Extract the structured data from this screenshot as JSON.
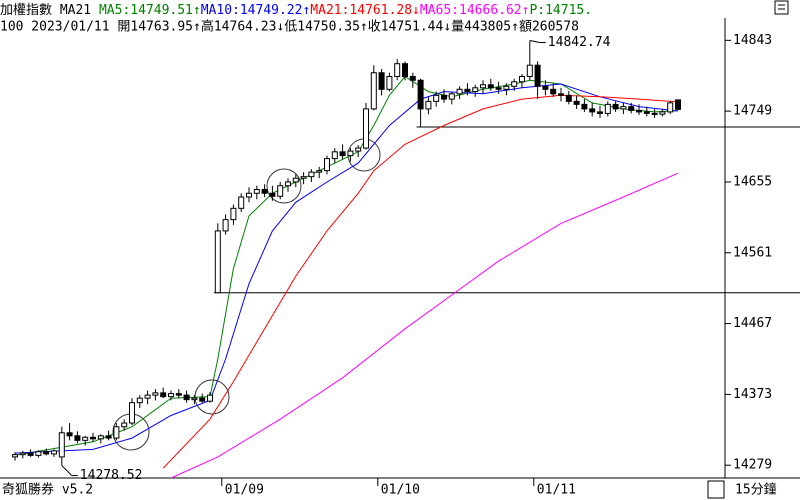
{
  "header": {
    "line1": [
      {
        "text": "加權指數 MA21 ",
        "color": "#000000"
      },
      {
        "text": "MA5:14749.51↑",
        "color": "#008000"
      },
      {
        "text": "MA10:14749.22↑",
        "color": "#0000ff"
      },
      {
        "text": "MA21:14761.28↓",
        "color": "#ff0000"
      },
      {
        "text": "MA65:14666.62↑",
        "color": "#ff00ff"
      },
      {
        "text": "P:14715.",
        "color": "#008000"
      }
    ],
    "line2": "100 2023/01/11 開14763.95↑高14764.23↓低14750.35↑收14751.44↓量443805↑額260578"
  },
  "footer": {
    "brand": "奇狐勝券 v5.2",
    "period": "15分鐘"
  },
  "chart_data": {
    "type": "candlestick",
    "open": [
      14290,
      14293,
      14295,
      14292,
      14297,
      14294,
      14290,
      14322,
      14318,
      14312,
      14316,
      14314,
      14318,
      14315,
      14330,
      14335,
      14362,
      14368,
      14372,
      14375,
      14370,
      14374,
      14372,
      14366,
      14368,
      14364,
      14508,
      14590,
      14605,
      14620,
      14635,
      14640,
      14645,
      14640,
      14636,
      14650,
      14655,
      14660,
      14662,
      14668,
      14670,
      14686,
      14695,
      14690,
      14696,
      14700,
      14752,
      14800,
      14778,
      14795,
      14812,
      14795,
      14790,
      14752,
      14762,
      14770,
      14765,
      14772,
      14778,
      14775,
      14780,
      14784,
      14780,
      14778,
      14782,
      14788,
      14795,
      14810,
      14782,
      14778,
      14772,
      14770,
      14762,
      14758,
      14752,
      14748,
      14746,
      14758,
      14752,
      14755,
      14750,
      14748,
      14746,
      14745,
      14748,
      14763.95
    ],
    "high": [
      14296,
      14298,
      14300,
      14299,
      14301,
      14300,
      14330,
      14335,
      14324,
      14318,
      14322,
      14320,
      14325,
      14335,
      14340,
      14368,
      14372,
      14378,
      14380,
      14382,
      14378,
      14380,
      14378,
      14372,
      14374,
      14376,
      14600,
      14612,
      14625,
      14640,
      14648,
      14650,
      14652,
      14650,
      14655,
      14660,
      14665,
      14668,
      14672,
      14675,
      14690,
      14700,
      14705,
      14700,
      14704,
      14760,
      14810,
      14805,
      14800,
      14818,
      14815,
      14800,
      14792,
      14768,
      14775,
      14778,
      14775,
      14782,
      14786,
      14784,
      14790,
      14792,
      14788,
      14786,
      14792,
      14798,
      14842.74,
      14815,
      14790,
      14786,
      14780,
      14776,
      14770,
      14765,
      14760,
      14756,
      14762,
      14762,
      14760,
      14760,
      14758,
      14755,
      14752,
      14752,
      14762,
      14764.23
    ],
    "low": [
      14285,
      14288,
      14290,
      14289,
      14292,
      14290,
      14278.52,
      14312,
      14308,
      14305,
      14310,
      14308,
      14312,
      14312,
      14325,
      14332,
      14355,
      14360,
      14365,
      14368,
      14365,
      14368,
      14362,
      14360,
      14362,
      14362,
      14508,
      14585,
      14598,
      14615,
      14628,
      14632,
      14635,
      14630,
      14632,
      14642,
      14648,
      14652,
      14655,
      14660,
      14665,
      14680,
      14685,
      14682,
      14688,
      14698,
      14750,
      14770,
      14775,
      14790,
      14790,
      14780,
      14728,
      14745,
      14755,
      14760,
      14758,
      14765,
      14770,
      14768,
      14772,
      14776,
      14772,
      14770,
      14776,
      14780,
      14790,
      14765,
      14770,
      14768,
      14762,
      14758,
      14752,
      14748,
      14742,
      14740,
      14742,
      14748,
      14745,
      14746,
      14744,
      14742,
      14740,
      14742,
      14745,
      14750.35
    ],
    "close": [
      14293,
      14295,
      14292,
      14297,
      14294,
      14298,
      14322,
      14318,
      14312,
      14316,
      14314,
      14318,
      14315,
      14330,
      14335,
      14362,
      14368,
      14372,
      14375,
      14370,
      14374,
      14372,
      14366,
      14368,
      14364,
      14372,
      14590,
      14605,
      14620,
      14635,
      14640,
      14645,
      14640,
      14636,
      14650,
      14655,
      14660,
      14662,
      14668,
      14670,
      14686,
      14695,
      14690,
      14696,
      14700,
      14752,
      14800,
      14778,
      14795,
      14812,
      14795,
      14790,
      14752,
      14762,
      14770,
      14765,
      14772,
      14778,
      14775,
      14780,
      14784,
      14780,
      14778,
      14782,
      14788,
      14795,
      14810,
      14782,
      14778,
      14772,
      14770,
      14762,
      14758,
      14752,
      14748,
      14746,
      14758,
      14752,
      14755,
      14750,
      14748,
      14746,
      14745,
      14748,
      14760,
      14751.44
    ],
    "lines": [
      {
        "name": "MA5",
        "color": "#008000",
        "x": [
          0,
          10,
          15,
          20,
          25,
          26,
          28,
          30,
          33,
          36,
          40,
          44,
          46,
          48,
          50,
          53,
          56,
          60,
          64,
          66,
          70,
          74,
          78,
          82,
          85
        ],
        "values": [
          14292,
          14310,
          14330,
          14368,
          14370,
          14420,
          14540,
          14610,
          14640,
          14655,
          14675,
          14695,
          14730,
          14770,
          14795,
          14775,
          14768,
          14778,
          14785,
          14790,
          14785,
          14760,
          14752,
          14748,
          14749.51
        ]
      },
      {
        "name": "MA10",
        "color": "#0000ff",
        "x": [
          0,
          10,
          15,
          20,
          25,
          27,
          30,
          33,
          36,
          40,
          44,
          48,
          52,
          55,
          60,
          65,
          70,
          75,
          80,
          85
        ],
        "values": [
          14295,
          14300,
          14315,
          14345,
          14365,
          14420,
          14520,
          14590,
          14628,
          14655,
          14680,
          14730,
          14765,
          14775,
          14772,
          14780,
          14785,
          14768,
          14755,
          14749.22
        ]
      },
      {
        "name": "MA21",
        "color": "#ff0000",
        "x": [
          19,
          25,
          28,
          32,
          36,
          40,
          44,
          46,
          50,
          55,
          60,
          65,
          70,
          75,
          80,
          85
        ],
        "values": [
          14275,
          14340,
          14390,
          14460,
          14530,
          14590,
          14640,
          14670,
          14705,
          14730,
          14752,
          14765,
          14770,
          14768,
          14765,
          14761.28
        ]
      },
      {
        "name": "MA65",
        "color": "#ff00ff",
        "x": [
          20,
          26,
          34,
          42,
          50,
          56,
          62,
          70,
          78,
          85
        ],
        "values": [
          14262,
          14290,
          14340,
          14395,
          14460,
          14505,
          14550,
          14600,
          14635,
          14666.62
        ]
      }
    ],
    "hlines": [
      {
        "value": 14728,
        "from_bar": 52
      },
      {
        "value": 14508,
        "from_bar": 26
      }
    ],
    "annotations": [
      {
        "label": "14842.74",
        "value": 14842.74,
        "bar": 66
      },
      {
        "label": "14278.52",
        "value": 14278.52,
        "bar": 6
      }
    ],
    "day_starts": [
      {
        "bar": 26,
        "label": "01/09"
      },
      {
        "bar": 46,
        "label": "01/10"
      },
      {
        "bar": 66,
        "label": "01/11"
      }
    ],
    "ylim": [
      14262,
      14870
    ],
    "yticks": [
      14279,
      14373,
      14467,
      14561,
      14655,
      14749,
      14843
    ]
  }
}
